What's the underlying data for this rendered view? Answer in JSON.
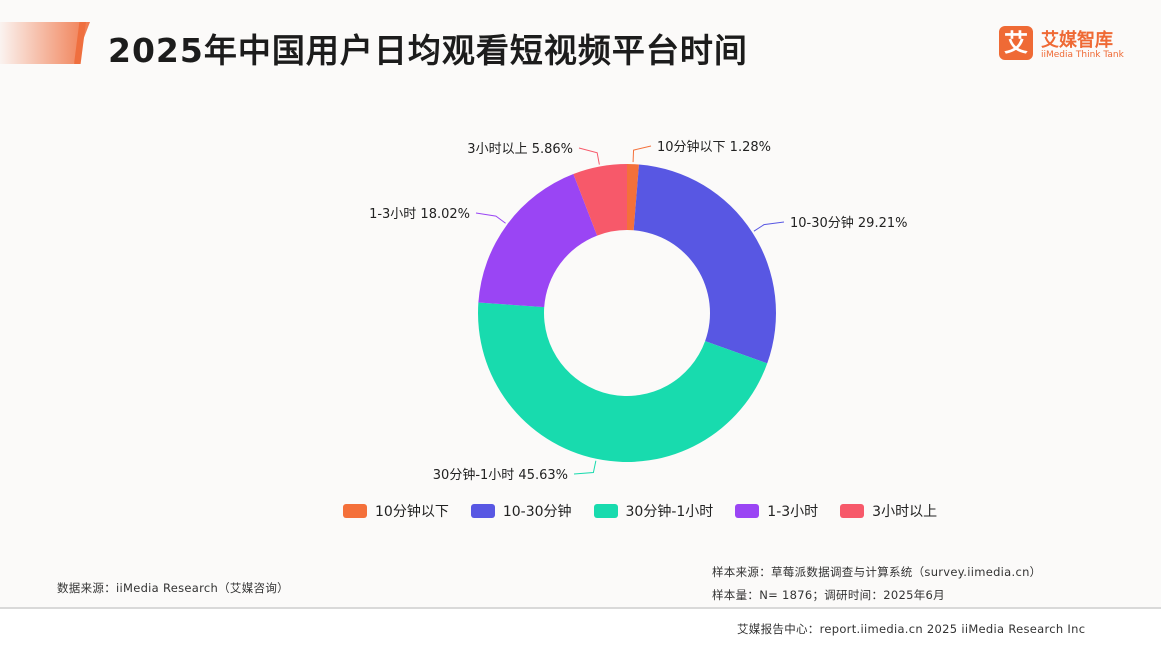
{
  "header": {
    "title": "2025年中国用户日均观看短视频平台时间",
    "logo_cn": "艾媒智库",
    "logo_en": "iiMedia Think Tank",
    "logo_mark": "艾"
  },
  "chart_data": {
    "type": "pie",
    "categories": [
      "10分钟以下",
      "10-30分钟",
      "30分钟-1小时",
      "1-3小时",
      "3小时以上"
    ],
    "values": [
      1.28,
      29.21,
      45.63,
      18.02,
      5.86
    ],
    "data_labels": [
      "10分钟以下 1.28%",
      "10-30分钟 29.21%",
      "30分钟-1小时 45.63%",
      "1-3小时 18.02%",
      "3小时以上 5.86%"
    ],
    "colors": [
      "#f4703a",
      "#5857e3",
      "#18dbae",
      "#9a45f4",
      "#f7596a"
    ],
    "donut": true,
    "legend": [
      "10分钟以下",
      "10-30分钟",
      "30分钟-1小时",
      "1-3小时",
      "3小时以上"
    ],
    "legend_position": "bottom"
  },
  "notes": {
    "source": "数据来源：iiMedia Research（艾媒咨询）",
    "sample_source": "样本来源：草莓派数据调查与计算系统（survey.iimedia.cn）",
    "sample_size": "样本量：N= 1876；调研时间：2025年6月",
    "footer": "艾媒报告中心：report.iimedia.cn   2025 iiMedia Research Inc"
  }
}
